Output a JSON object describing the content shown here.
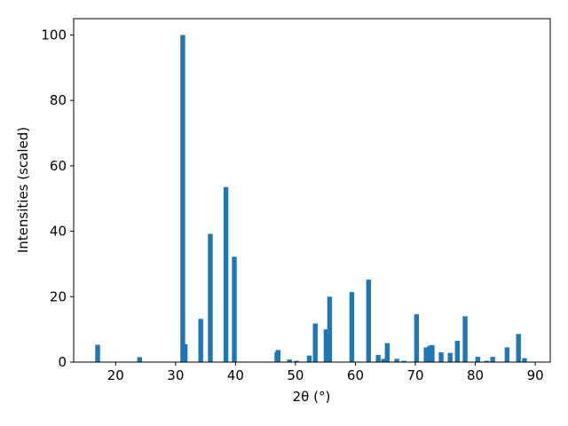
{
  "chart_data": {
    "type": "bar",
    "x_label": "2θ (°)",
    "y_label": "Intensities (scaled)",
    "color": "#1f77b4",
    "x": [
      17.0,
      24.0,
      31.2,
      31.6,
      34.2,
      35.8,
      38.4,
      39.8,
      46.9,
      47.1,
      49.0,
      50.2,
      52.3,
      53.3,
      55.1,
      55.7,
      59.4,
      62.2,
      63.8,
      64.7,
      65.3,
      66.9,
      68.1,
      70.2,
      71.8,
      72.4,
      72.8,
      74.3,
      75.8,
      77.0,
      78.3,
      80.4,
      81.9,
      82.9,
      85.3,
      87.2,
      88.2
    ],
    "values": [
      5.3,
      1.5,
      100,
      5.5,
      13.2,
      39.2,
      53.5,
      32.2,
      3,
      3.7,
      0.8,
      0.4,
      2,
      11.8,
      10,
      20,
      21.4,
      25.2,
      2.2,
      1,
      5.8,
      1,
      0.4,
      14.6,
      4.5,
      5,
      5.2,
      3,
      2.8,
      6.5,
      14,
      1.6,
      0.4,
      1.6,
      4.5,
      8.6,
      1.2
    ],
    "xlim": [
      13,
      92.5
    ],
    "ylim": [
      0,
      105
    ],
    "xticks": [
      20,
      30,
      40,
      50,
      60,
      70,
      80,
      90
    ],
    "yticks": [
      0,
      20,
      40,
      60,
      80,
      100
    ]
  }
}
